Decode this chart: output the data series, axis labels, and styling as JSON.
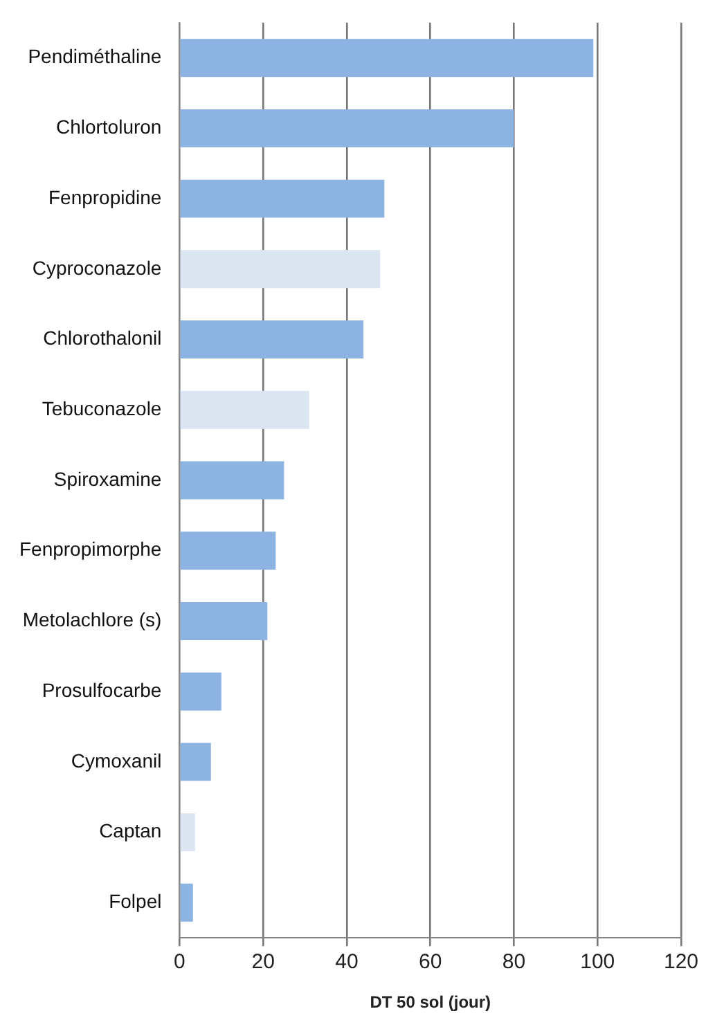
{
  "chart_data": {
    "type": "bar",
    "orientation": "horizontal",
    "xlabel": "DT 50 sol (jour)",
    "categories": [
      "Pendiméthaline",
      "Chlortoluron",
      "Fenpropidine",
      "Cyproconazole",
      "Chlorothalonil",
      "Tebuconazole",
      "Spiroxamine",
      "Fenpropimorphe",
      "Metolachlore (s)",
      "Prosulfocarbe",
      "Cymoxanil",
      "Captan",
      "Folpel"
    ],
    "values": [
      99,
      80,
      49,
      48,
      44,
      31,
      25,
      23,
      21,
      10,
      7.5,
      3.7,
      3.2
    ],
    "colors": [
      "#8db3e2",
      "#8db3e2",
      "#8db3e2",
      "#dce6f2",
      "#8db3e2",
      "#dce6f2",
      "#8db3e2",
      "#8db3e2",
      "#8db3e2",
      "#8db3e2",
      "#8db3e2",
      "#dce6f2",
      "#8db3e2"
    ],
    "xlim": [
      0,
      120
    ],
    "xticks": [
      0,
      20,
      40,
      60,
      80,
      100,
      120
    ],
    "grid": "x",
    "legend": false
  }
}
